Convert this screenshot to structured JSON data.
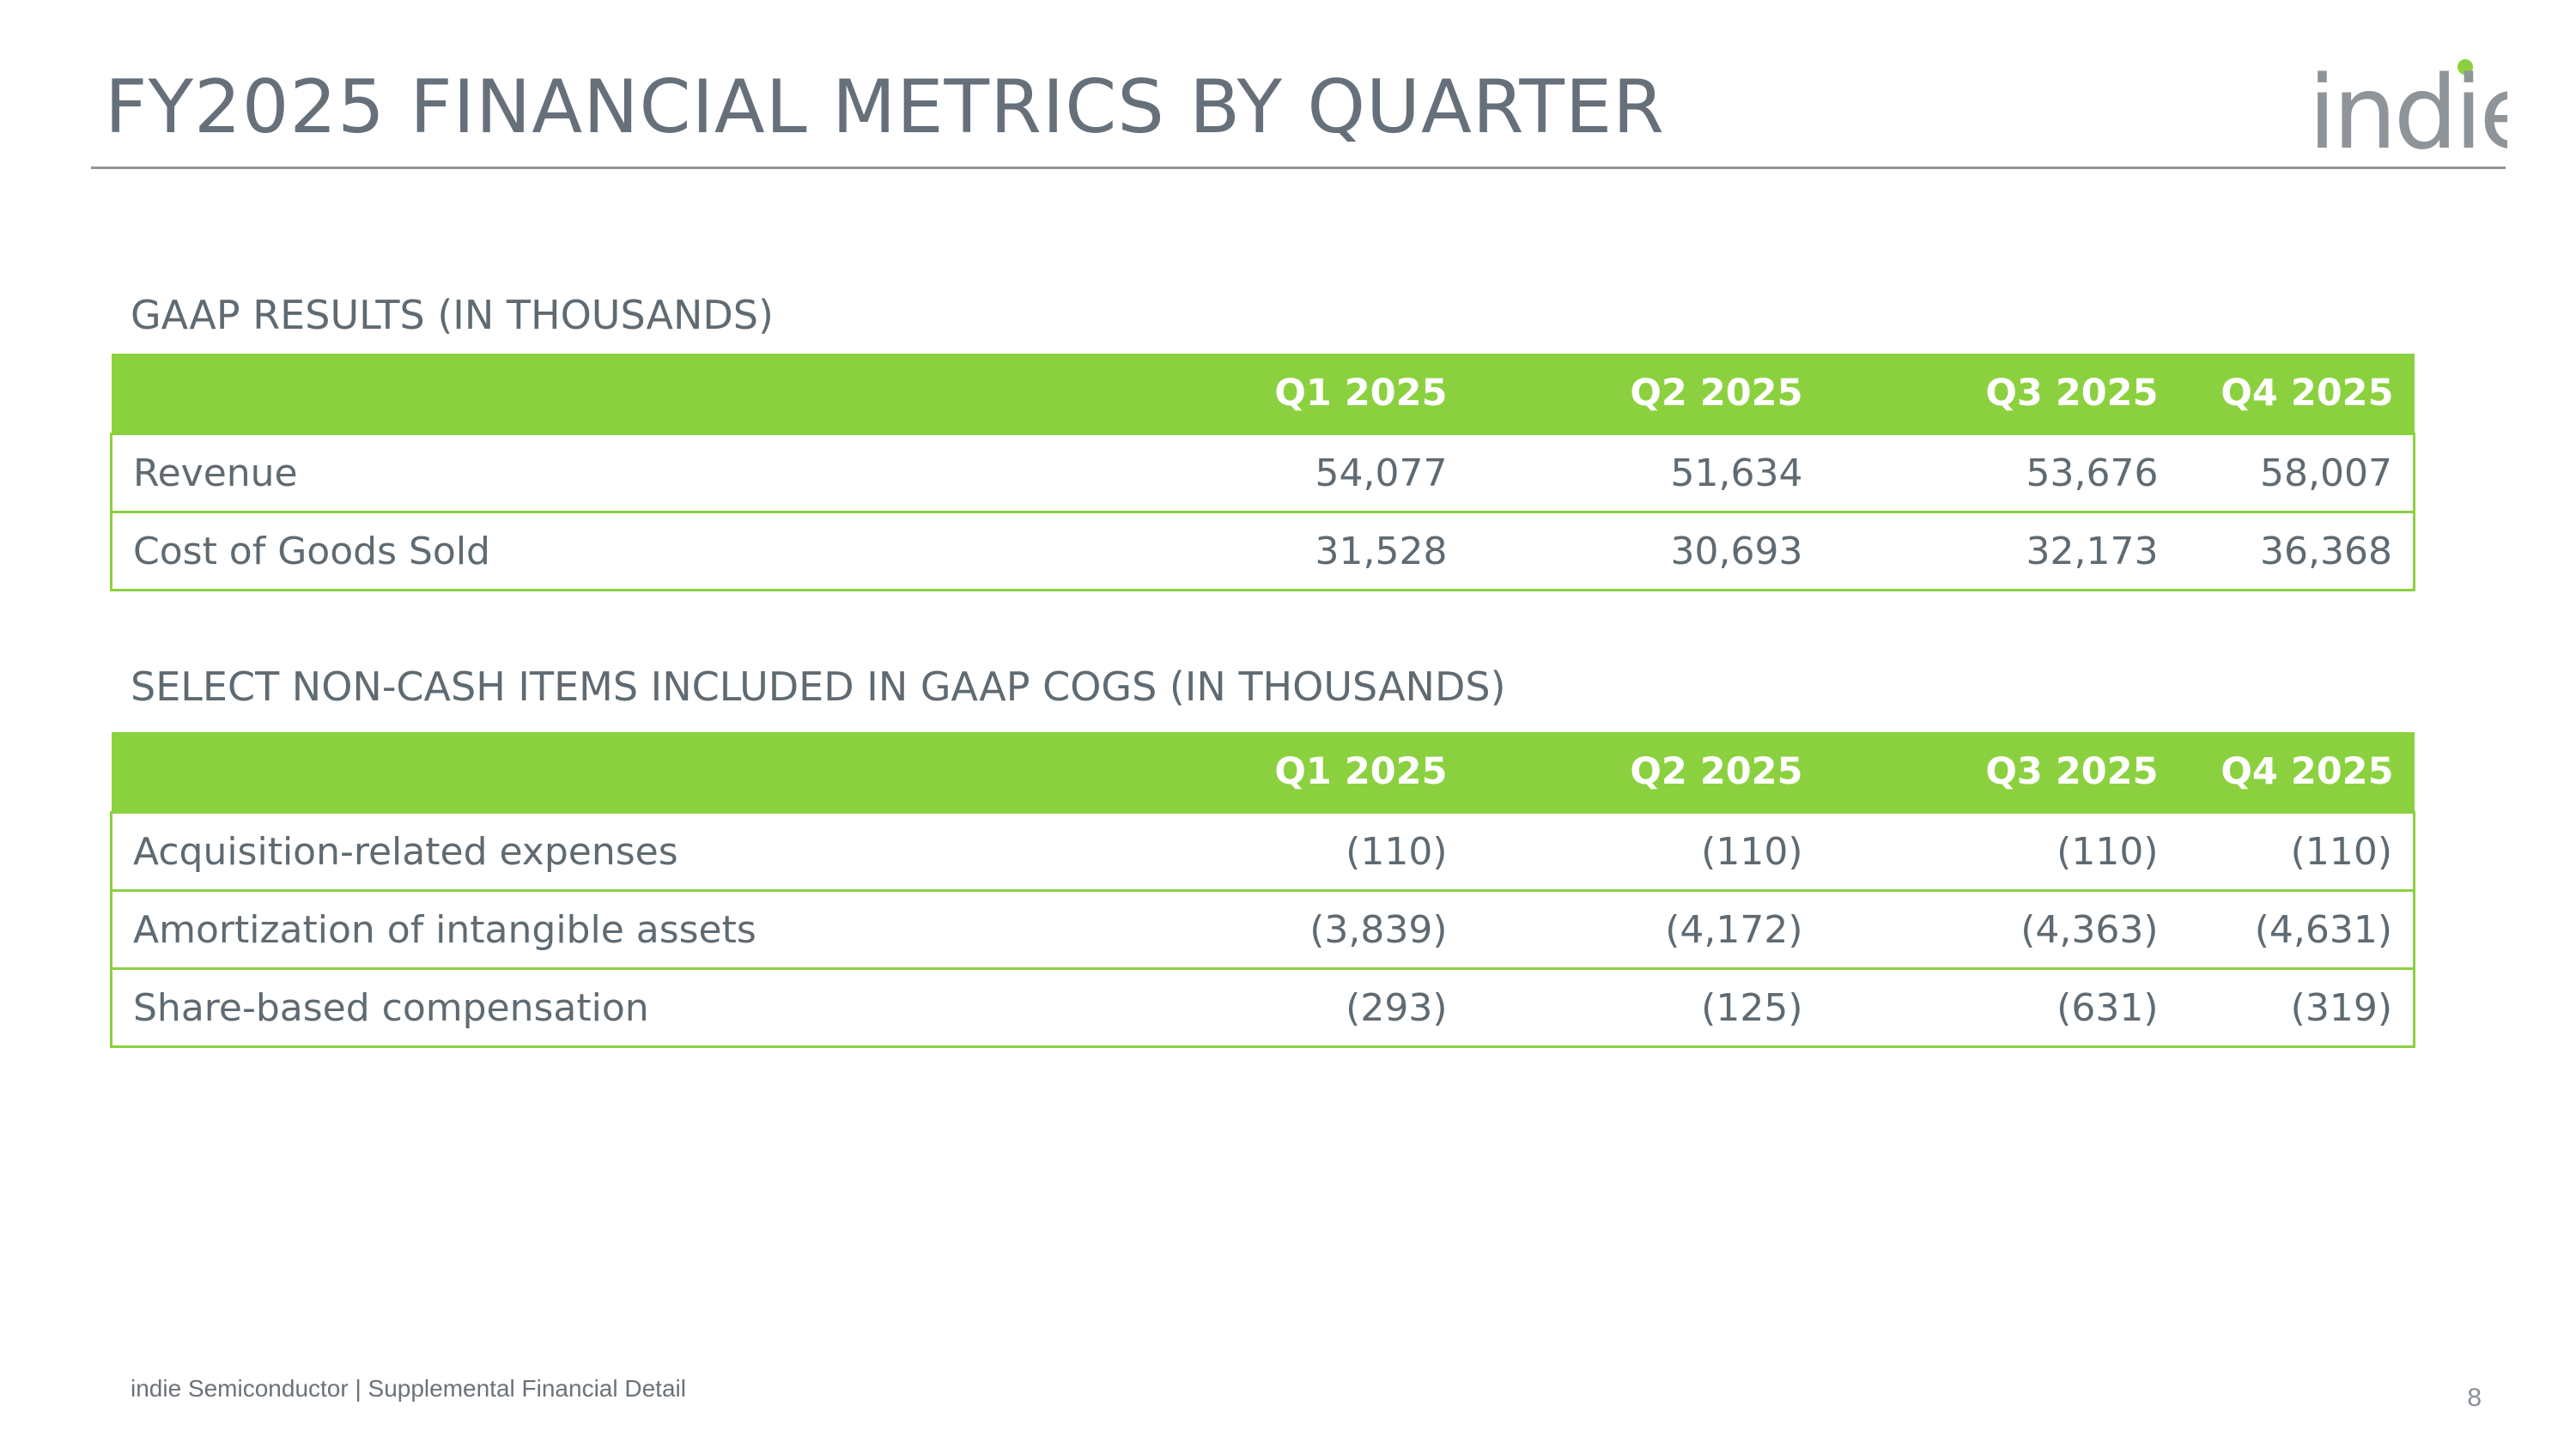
{
  "page": {
    "title": "FY2025 FINANCIAL METRICS BY QUARTER",
    "logo_text": "indie",
    "footer": "indie Semiconductor | Supplemental Financial Detail",
    "page_number": "8"
  },
  "colors": {
    "accent_green": "#8bd13f",
    "title_gray": "#66707a",
    "text_gray": "#5f6a72",
    "rule_gray": "#8f9499"
  },
  "gaap_table": {
    "heading": "GAAP RESULTS (IN THOUSANDS)",
    "columns": [
      "",
      "Q1 2025",
      "Q2 2025",
      "Q3 2025",
      "Q4 2025"
    ],
    "rows": [
      {
        "label": "Revenue",
        "values": [
          "54,077",
          "51,634",
          "53,676",
          "58,007"
        ]
      },
      {
        "label": "Cost of Goods Sold",
        "values": [
          "31,528",
          "30,693",
          "32,173",
          "36,368"
        ]
      }
    ]
  },
  "noncash_table": {
    "heading": "SELECT NON-CASH ITEMS INCLUDED IN GAAP COGS (IN THOUSANDS)",
    "columns": [
      "",
      "Q1 2025",
      "Q2 2025",
      "Q3 2025",
      "Q4 2025"
    ],
    "rows": [
      {
        "label": "Acquisition-related expenses",
        "values": [
          "(110)",
          "(110)",
          "(110)",
          "(110)"
        ]
      },
      {
        "label": "Amortization of intangible assets",
        "values": [
          "(3,839)",
          "(4,172)",
          "(4,363)",
          "(4,631)"
        ]
      },
      {
        "label": "Share-based compensation",
        "values": [
          "(293)",
          "(125)",
          "(631)",
          "(319)"
        ]
      }
    ]
  }
}
